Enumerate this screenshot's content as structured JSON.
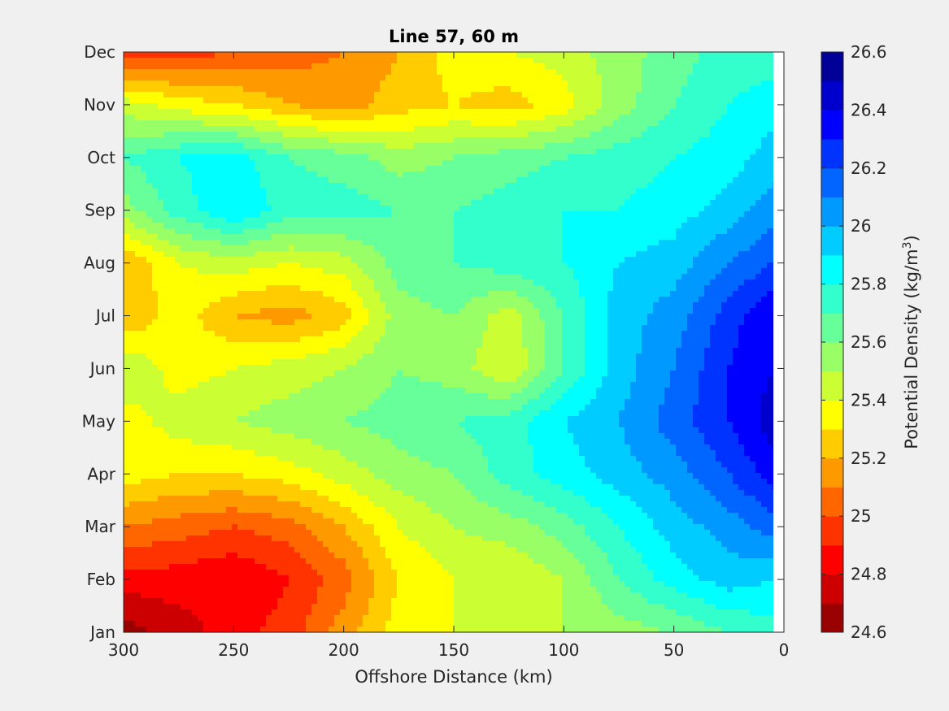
{
  "chart_data": {
    "type": "heatmap",
    "subtype": "filled-contour",
    "title": "Line 57, 60 m",
    "xlabel": "Offshore Distance (km)",
    "ylabel": "",
    "colorbar_label": "Potential Density (kg/m",
    "colorbar_label_sup": "3",
    "colorbar_label_end": ")",
    "xlim": [
      300,
      0
    ],
    "x_reversed": true,
    "xticks": [
      300,
      250,
      200,
      150,
      100,
      50,
      0
    ],
    "ylim": [
      1,
      12.0
    ],
    "yticks": [
      "Jan",
      "Feb",
      "Mar",
      "Apr",
      "May",
      "Jun",
      "Jul",
      "Aug",
      "Sep",
      "Oct",
      "Nov",
      "Dec"
    ],
    "clim": [
      24.6,
      26.6
    ],
    "colorbar_ticks": [
      "24.6",
      "24.8",
      "25",
      "25.2",
      "25.4",
      "25.6",
      "25.8",
      "26",
      "26.2",
      "26.4",
      "26.6"
    ],
    "levels": [
      24.6,
      24.7,
      24.8,
      24.9,
      25.0,
      25.1,
      25.2,
      25.3,
      25.4,
      25.5,
      25.6,
      25.7,
      25.8,
      25.9,
      26.0,
      26.1,
      26.2,
      26.3,
      26.4,
      26.5,
      26.6
    ],
    "colormap": [
      "#990000",
      "#cc0000",
      "#ff0000",
      "#ff3300",
      "#ff6600",
      "#ff9900",
      "#ffcc00",
      "#ffff00",
      "#ccff33",
      "#99ff66",
      "#66ff99",
      "#33ffcc",
      "#00ffff",
      "#00ccff",
      "#0099ff",
      "#0066ff",
      "#0033ff",
      "#0000ff",
      "#0000cc",
      "#000099"
    ],
    "grid": false,
    "x": [
      300,
      275,
      250,
      225,
      200,
      175,
      150,
      125,
      100,
      75,
      50,
      25,
      5
    ],
    "y_months": [
      1,
      2,
      3,
      4,
      5,
      6,
      7,
      8,
      9,
      10,
      11,
      12,
      12.0
    ],
    "z": [
      [
        24.65,
        24.75,
        24.85,
        24.95,
        25.15,
        25.35,
        25.4,
        25.45,
        25.5,
        25.55,
        25.6,
        25.7,
        25.75
      ],
      [
        24.85,
        24.85,
        24.8,
        24.9,
        25.05,
        25.3,
        25.4,
        25.4,
        25.5,
        25.7,
        25.85,
        25.95,
        25.9
      ],
      [
        25.1,
        25.05,
        25.0,
        25.05,
        25.2,
        25.4,
        25.5,
        25.55,
        25.65,
        25.8,
        25.95,
        26.05,
        26.15
      ],
      [
        25.35,
        25.3,
        25.3,
        25.35,
        25.45,
        25.55,
        25.6,
        25.75,
        25.85,
        25.95,
        26.05,
        26.2,
        26.35
      ],
      [
        25.35,
        25.45,
        25.5,
        25.55,
        25.6,
        25.65,
        25.7,
        25.75,
        25.9,
        26.0,
        26.15,
        26.3,
        26.45
      ],
      [
        25.5,
        25.35,
        25.4,
        25.45,
        25.5,
        25.6,
        25.55,
        25.4,
        25.7,
        25.95,
        26.1,
        26.3,
        26.4
      ],
      [
        25.2,
        25.35,
        25.2,
        25.15,
        25.25,
        25.55,
        25.6,
        25.45,
        25.7,
        25.95,
        26.05,
        26.25,
        26.4
      ],
      [
        25.2,
        25.4,
        25.45,
        25.4,
        25.45,
        25.65,
        25.7,
        25.75,
        25.8,
        25.9,
        25.95,
        26.1,
        26.2
      ],
      [
        25.55,
        25.75,
        25.9,
        25.75,
        25.75,
        25.7,
        25.7,
        25.75,
        25.8,
        25.8,
        25.85,
        25.95,
        26.05
      ],
      [
        25.7,
        25.8,
        25.85,
        25.7,
        25.65,
        25.55,
        25.6,
        25.65,
        25.7,
        25.75,
        25.8,
        25.85,
        25.95
      ],
      [
        25.45,
        25.35,
        25.3,
        25.2,
        25.15,
        25.25,
        25.3,
        25.25,
        25.35,
        25.55,
        25.7,
        25.8,
        25.85
      ],
      [
        24.95,
        24.95,
        25.0,
        25.05,
        25.1,
        25.2,
        25.35,
        25.4,
        25.45,
        25.55,
        25.65,
        25.75,
        25.75
      ],
      [
        24.75,
        24.9,
        25.0,
        25.0,
        25.05,
        25.2,
        25.35,
        25.4,
        25.45,
        25.55,
        25.65,
        25.7,
        25.7
      ]
    ]
  }
}
